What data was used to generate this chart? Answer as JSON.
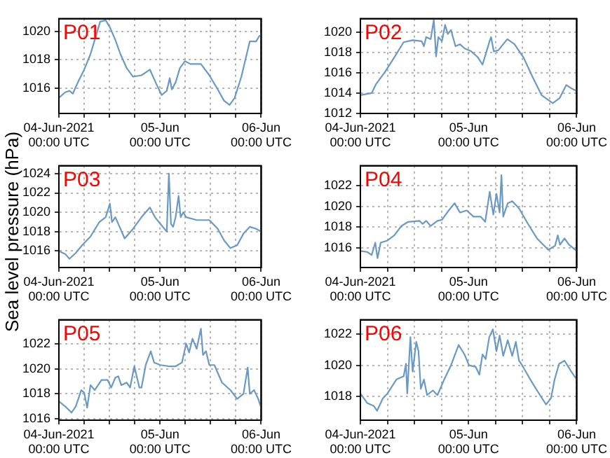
{
  "chart_data": [
    {
      "type": "line",
      "annotations": [
        "P01"
      ],
      "grid": true,
      "marker": "none",
      "line_style": "solid",
      "xlim": [
        "2021-06-04T00:00",
        "2021-06-06T00:00"
      ],
      "ylim": [
        1014.2,
        1020.9
      ],
      "yticks": [
        1016,
        1018,
        1020
      ],
      "xticks": [
        {
          "value": "2021-06-04T00:00",
          "label": "04-Jun-2021\n00:00 UTC"
        },
        {
          "value": "2021-06-04T06:00",
          "label": null
        },
        {
          "value": "2021-06-04T12:00",
          "label": null
        },
        {
          "value": "2021-06-04T18:00",
          "label": null
        },
        {
          "value": "2021-06-05T00:00",
          "label": "05-Jun\n00:00 UTC"
        },
        {
          "value": "2021-06-05T06:00",
          "label": null
        },
        {
          "value": "2021-06-05T12:00",
          "label": null
        },
        {
          "value": "2021-06-05T18:00",
          "label": null
        },
        {
          "value": "2021-06-06T00:00",
          "label": "06-Jun\n00:00 UTC"
        }
      ],
      "x": [
        "2021-06-04T00:00",
        "2021-06-04T01:30",
        "2021-06-04T02:30",
        "2021-06-04T03:18",
        "2021-06-04T04:30",
        "2021-06-04T06:00",
        "2021-06-04T07:30",
        "2021-06-04T08:30",
        "2021-06-04T09:48",
        "2021-06-04T11:06",
        "2021-06-04T12:06",
        "2021-06-04T13:24",
        "2021-06-04T14:36",
        "2021-06-04T16:06",
        "2021-06-04T17:36",
        "2021-06-04T19:36",
        "2021-06-04T21:36",
        "2021-06-04T23:06",
        "2021-06-05T00:24",
        "2021-06-05T01:36",
        "2021-06-05T02:18",
        "2021-06-05T02:48",
        "2021-06-05T03:42",
        "2021-06-05T04:42",
        "2021-06-05T05:54",
        "2021-06-05T07:12",
        "2021-06-05T09:42",
        "2021-06-05T11:42",
        "2021-06-05T13:42",
        "2021-06-05T15:12",
        "2021-06-05T16:30",
        "2021-06-05T17:42",
        "2021-06-05T19:18",
        "2021-06-05T21:18",
        "2021-06-05T22:48",
        "2021-06-05T23:36",
        "2021-06-06T00:00"
      ],
      "series": [
        {
          "color": "#6a9ac4",
          "values": [
            1015.3,
            1015.7,
            1015.8,
            1015.6,
            1016.4,
            1017.3,
            1018.4,
            1019.4,
            1020.7,
            1020.8,
            1020.3,
            1019.4,
            1018.4,
            1017.4,
            1016.8,
            1016.9,
            1017.3,
            1016.3,
            1015.5,
            1015.8,
            1016.7,
            1015.9,
            1016.4,
            1017.4,
            1017.9,
            1017.7,
            1017.7,
            1016.9,
            1015.9,
            1015.1,
            1014.8,
            1015.3,
            1016.8,
            1019.3,
            1019.3,
            1019.7,
            1019.7
          ]
        }
      ]
    },
    {
      "type": "line",
      "annotations": [
        "P02"
      ],
      "grid": true,
      "marker": "none",
      "line_style": "solid",
      "xlim": [
        "2021-06-04T00:00",
        "2021-06-06T00:00"
      ],
      "ylim": [
        1012,
        1021.3
      ],
      "yticks": [
        1012,
        1014,
        1016,
        1018,
        1020
      ],
      "xticks": [
        {
          "value": "2021-06-04T00:00",
          "label": "04-Jun-2021\n00:00 UTC"
        },
        {
          "value": "2021-06-04T06:00",
          "label": null
        },
        {
          "value": "2021-06-04T12:00",
          "label": null
        },
        {
          "value": "2021-06-04T18:00",
          "label": null
        },
        {
          "value": "2021-06-05T00:00",
          "label": "05-Jun\n00:00 UTC"
        },
        {
          "value": "2021-06-05T06:00",
          "label": null
        },
        {
          "value": "2021-06-05T12:00",
          "label": null
        },
        {
          "value": "2021-06-05T18:00",
          "label": null
        },
        {
          "value": "2021-06-06T00:00",
          "label": "06-Jun\n00:00 UTC"
        }
      ],
      "x": [
        "2021-06-04T00:00",
        "2021-06-04T02:30",
        "2021-06-04T03:30",
        "2021-06-04T05:30",
        "2021-06-04T07:30",
        "2021-06-04T09:36",
        "2021-06-04T11:36",
        "2021-06-04T13:36",
        "2021-06-04T14:06",
        "2021-06-04T14:36",
        "2021-06-04T15:36",
        "2021-06-04T16:18",
        "2021-06-04T16:48",
        "2021-06-04T17:18",
        "2021-06-04T18:06",
        "2021-06-04T18:48",
        "2021-06-04T19:24",
        "2021-06-04T20:06",
        "2021-06-04T21:06",
        "2021-06-04T22:06",
        "2021-06-04T23:06",
        "2021-06-05T00:36",
        "2021-06-05T02:06",
        "2021-06-05T03:06",
        "2021-06-05T03:48",
        "2021-06-05T04:36",
        "2021-06-05T05:00",
        "2021-06-05T05:36",
        "2021-06-05T06:36",
        "2021-06-05T08:36",
        "2021-06-05T10:12",
        "2021-06-05T12:12",
        "2021-06-05T14:12",
        "2021-06-05T16:12",
        "2021-06-05T18:42",
        "2021-06-05T20:12",
        "2021-06-05T21:42",
        "2021-06-05T22:42",
        "2021-06-06T00:00"
      ],
      "series": [
        {
          "color": "#6a9ac4",
          "values": [
            1013.8,
            1014,
            1014.9,
            1016.1,
            1017.5,
            1019,
            1019.2,
            1019.1,
            1018.6,
            1019.5,
            1019.3,
            1021.2,
            1017.6,
            1019.5,
            1019.1,
            1020.7,
            1019.8,
            1020.2,
            1018.6,
            1018.8,
            1018.4,
            1018.1,
            1017.5,
            1016.8,
            1017.8,
            1019,
            1019.5,
            1018.1,
            1018.2,
            1019.3,
            1018.8,
            1017.5,
            1015.6,
            1013.8,
            1013,
            1013.5,
            1014.8,
            1014.5,
            1014.2
          ]
        }
      ]
    },
    {
      "type": "line",
      "annotations": [
        "P03"
      ],
      "ylabel": "Sea level pressure (hPa)",
      "grid": true,
      "marker": "none",
      "line_style": "solid",
      "xlim": [
        "2021-06-04T00:00",
        "2021-06-06T00:00"
      ],
      "ylim": [
        1014.3,
        1024.8
      ],
      "yticks": [
        1016,
        1018,
        1020,
        1022,
        1024
      ],
      "xticks": [
        {
          "value": "2021-06-04T00:00",
          "label": "04-Jun-2021\n00:00 UTC"
        },
        {
          "value": "2021-06-04T06:00",
          "label": null
        },
        {
          "value": "2021-06-04T12:00",
          "label": null
        },
        {
          "value": "2021-06-04T18:00",
          "label": null
        },
        {
          "value": "2021-06-05T00:00",
          "label": "05-Jun\n00:00 UTC"
        },
        {
          "value": "2021-06-05T06:00",
          "label": null
        },
        {
          "value": "2021-06-05T12:00",
          "label": null
        },
        {
          "value": "2021-06-05T18:00",
          "label": null
        },
        {
          "value": "2021-06-06T00:00",
          "label": "06-Jun\n00:00 UTC"
        }
      ],
      "x": [
        "2021-06-04T00:00",
        "2021-06-04T01:30",
        "2021-06-04T02:30",
        "2021-06-04T04:00",
        "2021-06-04T05:30",
        "2021-06-04T07:30",
        "2021-06-04T09:36",
        "2021-06-04T11:06",
        "2021-06-04T12:06",
        "2021-06-04T12:36",
        "2021-06-04T13:24",
        "2021-06-04T14:24",
        "2021-06-04T15:36",
        "2021-06-04T17:36",
        "2021-06-04T19:36",
        "2021-06-04T21:36",
        "2021-06-04T22:48",
        "2021-06-05T00:06",
        "2021-06-05T01:36",
        "2021-06-05T02:06",
        "2021-06-05T02:36",
        "2021-06-05T03:06",
        "2021-06-05T03:42",
        "2021-06-05T04:24",
        "2021-06-05T04:54",
        "2021-06-05T05:30",
        "2021-06-05T06:12",
        "2021-06-05T08:42",
        "2021-06-05T11:42",
        "2021-06-05T13:42",
        "2021-06-05T15:12",
        "2021-06-05T16:42",
        "2021-06-05T18:18",
        "2021-06-05T19:48",
        "2021-06-05T21:18",
        "2021-06-05T22:48",
        "2021-06-06T00:00"
      ],
      "series": [
        {
          "color": "#6a9ac4",
          "values": [
            1016,
            1015.7,
            1015.2,
            1015.8,
            1016.6,
            1017.5,
            1019,
            1019.5,
            1020.9,
            1019,
            1019.5,
            1018.5,
            1017.3,
            1018.3,
            1019.5,
            1020.5,
            1019.5,
            1018.8,
            1018,
            1024,
            1018.8,
            1018.5,
            1019.5,
            1021.7,
            1019.5,
            1020,
            1019.5,
            1019.2,
            1019.2,
            1018.3,
            1017.1,
            1016.3,
            1016.6,
            1017.8,
            1018.5,
            1018.3,
            1018
          ]
        }
      ]
    },
    {
      "type": "line",
      "annotations": [
        "P04"
      ],
      "grid": true,
      "marker": "none",
      "line_style": "solid",
      "xlim": [
        "2021-06-04T00:00",
        "2021-06-06T00:00"
      ],
      "ylim": [
        1014.1,
        1023.9
      ],
      "yticks": [
        1016,
        1018,
        1020,
        1022
      ],
      "xticks": [
        {
          "value": "2021-06-04T00:00",
          "label": "04-Jun-2021\n00:00 UTC"
        },
        {
          "value": "2021-06-04T06:00",
          "label": null
        },
        {
          "value": "2021-06-04T12:00",
          "label": null
        },
        {
          "value": "2021-06-04T18:00",
          "label": null
        },
        {
          "value": "2021-06-05T00:00",
          "label": "05-Jun\n00:00 UTC"
        },
        {
          "value": "2021-06-05T06:00",
          "label": null
        },
        {
          "value": "2021-06-05T12:00",
          "label": null
        },
        {
          "value": "2021-06-05T18:00",
          "label": null
        },
        {
          "value": "2021-06-06T00:00",
          "label": "06-Jun\n00:00 UTC"
        }
      ],
      "x": [
        "2021-06-04T00:00",
        "2021-06-04T01:30",
        "2021-06-04T02:30",
        "2021-06-04T03:18",
        "2021-06-04T03:48",
        "2021-06-04T04:30",
        "2021-06-04T06:00",
        "2021-06-04T07:30",
        "2021-06-04T09:06",
        "2021-06-04T10:36",
        "2021-06-04T13:06",
        "2021-06-04T13:48",
        "2021-06-04T14:36",
        "2021-06-04T15:36",
        "2021-06-04T17:06",
        "2021-06-04T18:06",
        "2021-06-04T19:36",
        "2021-06-04T20:54",
        "2021-06-04T22:06",
        "2021-06-04T23:36",
        "2021-06-05T01:06",
        "2021-06-05T02:42",
        "2021-06-05T03:42",
        "2021-06-05T04:42",
        "2021-06-05T05:30",
        "2021-06-05T06:12",
        "2021-06-05T06:54",
        "2021-06-05T07:18",
        "2021-06-05T07:42",
        "2021-06-05T08:42",
        "2021-06-05T09:42",
        "2021-06-05T11:12",
        "2021-06-05T13:12",
        "2021-06-05T15:12",
        "2021-06-05T17:42",
        "2021-06-05T19:12",
        "2021-06-05T19:48",
        "2021-06-05T20:18",
        "2021-06-05T21:18",
        "2021-06-05T22:18",
        "2021-06-06T00:00"
      ],
      "series": [
        {
          "color": "#6a9ac4",
          "values": [
            1015.7,
            1015.6,
            1015.3,
            1016.5,
            1015,
            1016.5,
            1016.7,
            1017.2,
            1018.1,
            1018.5,
            1018.6,
            1018.3,
            1018.6,
            1018.1,
            1018.6,
            1018.7,
            1019.6,
            1020.3,
            1019.4,
            1019.6,
            1019,
            1019,
            1018.5,
            1021.4,
            1019.2,
            1021.2,
            1019.4,
            1023,
            1019,
            1020.3,
            1020.5,
            1019.8,
            1018.3,
            1016.9,
            1015.8,
            1016.2,
            1017.2,
            1016.3,
            1016.9,
            1016.3,
            1015.7
          ]
        }
      ]
    },
    {
      "type": "line",
      "annotations": [
        "P05"
      ],
      "grid": true,
      "marker": "none",
      "line_style": "solid",
      "xlim": [
        "2021-06-04T00:00",
        "2021-06-06T00:00"
      ],
      "ylim": [
        1015.9,
        1023.9
      ],
      "yticks": [
        1016,
        1018,
        1020,
        1022
      ],
      "xticks": [
        {
          "value": "2021-06-04T00:00",
          "label": "04-Jun-2021\n00:00 UTC"
        },
        {
          "value": "2021-06-04T06:00",
          "label": null
        },
        {
          "value": "2021-06-04T12:00",
          "label": null
        },
        {
          "value": "2021-06-04T18:00",
          "label": null
        },
        {
          "value": "2021-06-05T00:00",
          "label": "05-Jun\n00:00 UTC"
        },
        {
          "value": "2021-06-05T06:00",
          "label": null
        },
        {
          "value": "2021-06-05T12:00",
          "label": null
        },
        {
          "value": "2021-06-05T18:00",
          "label": null
        },
        {
          "value": "2021-06-06T00:00",
          "label": "06-Jun\n00:00 UTC"
        }
      ],
      "x": [
        "2021-06-04T00:00",
        "2021-06-04T01:30",
        "2021-06-04T03:00",
        "2021-06-04T04:00",
        "2021-06-04T05:18",
        "2021-06-04T06:00",
        "2021-06-04T06:42",
        "2021-06-04T07:30",
        "2021-06-04T08:30",
        "2021-06-04T10:06",
        "2021-06-04T11:36",
        "2021-06-04T12:24",
        "2021-06-04T13:24",
        "2021-06-04T14:06",
        "2021-06-04T14:48",
        "2021-06-04T16:06",
        "2021-06-04T16:54",
        "2021-06-04T17:54",
        "2021-06-04T19:06",
        "2021-06-04T19:36",
        "2021-06-04T20:36",
        "2021-06-04T21:48",
        "2021-06-04T22:36",
        "2021-06-05T00:06",
        "2021-06-05T02:06",
        "2021-06-05T03:42",
        "2021-06-05T05:12",
        "2021-06-05T06:12",
        "2021-06-05T06:54",
        "2021-06-05T07:42",
        "2021-06-05T08:42",
        "2021-06-05T09:42",
        "2021-06-05T10:12",
        "2021-06-05T10:54",
        "2021-06-05T11:42",
        "2021-06-05T12:54",
        "2021-06-05T14:42",
        "2021-06-05T16:42",
        "2021-06-05T18:18",
        "2021-06-05T19:48",
        "2021-06-05T20:48",
        "2021-06-05T21:18",
        "2021-06-05T22:18",
        "2021-06-05T23:18",
        "2021-06-06T00:00"
      ],
      "series": [
        {
          "color": "#6a9ac4",
          "values": [
            1017.4,
            1017,
            1016.5,
            1017,
            1018.3,
            1018.1,
            1016.9,
            1018.7,
            1018.3,
            1019.1,
            1019.1,
            1018.5,
            1019.3,
            1019.4,
            1018.7,
            1018.9,
            1018.5,
            1020.2,
            1018.5,
            1018.5,
            1020.3,
            1021.4,
            1020.5,
            1020.3,
            1020.2,
            1020.2,
            1020.5,
            1022,
            1021.3,
            1022.4,
            1021.6,
            1023.2,
            1021.1,
            1021.4,
            1020.3,
            1020.3,
            1018.9,
            1018.3,
            1017.6,
            1018,
            1020.1,
            1018,
            1018.3,
            1017.6,
            1016.9
          ]
        }
      ]
    },
    {
      "type": "line",
      "annotations": [
        "P06"
      ],
      "grid": true,
      "marker": "none",
      "line_style": "solid",
      "xlim": [
        "2021-06-04T00:00",
        "2021-06-06T00:00"
      ],
      "ylim": [
        1016.5,
        1022.9
      ],
      "yticks": [
        1018,
        1020,
        1022
      ],
      "xticks": [
        {
          "value": "2021-06-04T00:00",
          "label": "04-Jun-2021\n00:00 UTC"
        },
        {
          "value": "2021-06-04T06:00",
          "label": null
        },
        {
          "value": "2021-06-04T12:00",
          "label": null
        },
        {
          "value": "2021-06-04T18:00",
          "label": null
        },
        {
          "value": "2021-06-05T00:00",
          "label": "05-Jun\n00:00 UTC"
        },
        {
          "value": "2021-06-05T06:00",
          "label": null
        },
        {
          "value": "2021-06-05T12:00",
          "label": null
        },
        {
          "value": "2021-06-05T18:00",
          "label": null
        },
        {
          "value": "2021-06-06T00:00",
          "label": "06-Jun\n00:00 UTC"
        }
      ],
      "x": [
        "2021-06-04T00:00",
        "2021-06-04T01:30",
        "2021-06-04T03:00",
        "2021-06-04T03:42",
        "2021-06-04T05:00",
        "2021-06-04T06:00",
        "2021-06-04T08:00",
        "2021-06-04T09:36",
        "2021-06-04T10:06",
        "2021-06-04T10:24",
        "2021-06-04T11:06",
        "2021-06-04T11:36",
        "2021-06-04T12:24",
        "2021-06-04T12:54",
        "2021-06-04T13:24",
        "2021-06-04T14:06",
        "2021-06-04T14:48",
        "2021-06-04T16:06",
        "2021-06-04T17:06",
        "2021-06-04T18:36",
        "2021-06-04T20:06",
        "2021-06-04T21:48",
        "2021-06-04T23:06",
        "2021-06-05T00:06",
        "2021-06-05T01:36",
        "2021-06-05T02:24",
        "2021-06-05T03:06",
        "2021-06-05T03:48",
        "2021-06-05T04:36",
        "2021-06-05T05:24",
        "2021-06-05T06:12",
        "2021-06-05T06:54",
        "2021-06-05T07:42",
        "2021-06-05T08:42",
        "2021-06-05T09:42",
        "2021-06-05T10:30",
        "2021-06-05T11:12",
        "2021-06-05T11:54",
        "2021-06-05T13:42",
        "2021-06-05T15:12",
        "2021-06-05T17:12",
        "2021-06-05T18:18",
        "2021-06-05T19:06",
        "2021-06-05T20:06",
        "2021-06-05T21:18",
        "2021-06-05T22:48",
        "2021-06-06T00:00"
      ],
      "series": [
        {
          "color": "#6a9ac4",
          "values": [
            1018.2,
            1017.6,
            1017.4,
            1017.1,
            1017.9,
            1018.2,
            1019.1,
            1019.3,
            1020.1,
            1018.2,
            1021.8,
            1019.6,
            1021.5,
            1020.9,
            1018.5,
            1019.1,
            1018.1,
            1018.4,
            1018.1,
            1019.1,
            1020,
            1021.3,
            1020.7,
            1020,
            1019.9,
            1019.4,
            1020.7,
            1020.4,
            1021.8,
            1022.3,
            1020.9,
            1021.9,
            1020.6,
            1021.6,
            1020.6,
            1021.5,
            1020.3,
            1020,
            1019.1,
            1018.4,
            1017.5,
            1017.9,
            1019.1,
            1020.1,
            1020.3,
            1019.6,
            1019.1
          ]
        }
      ]
    }
  ]
}
